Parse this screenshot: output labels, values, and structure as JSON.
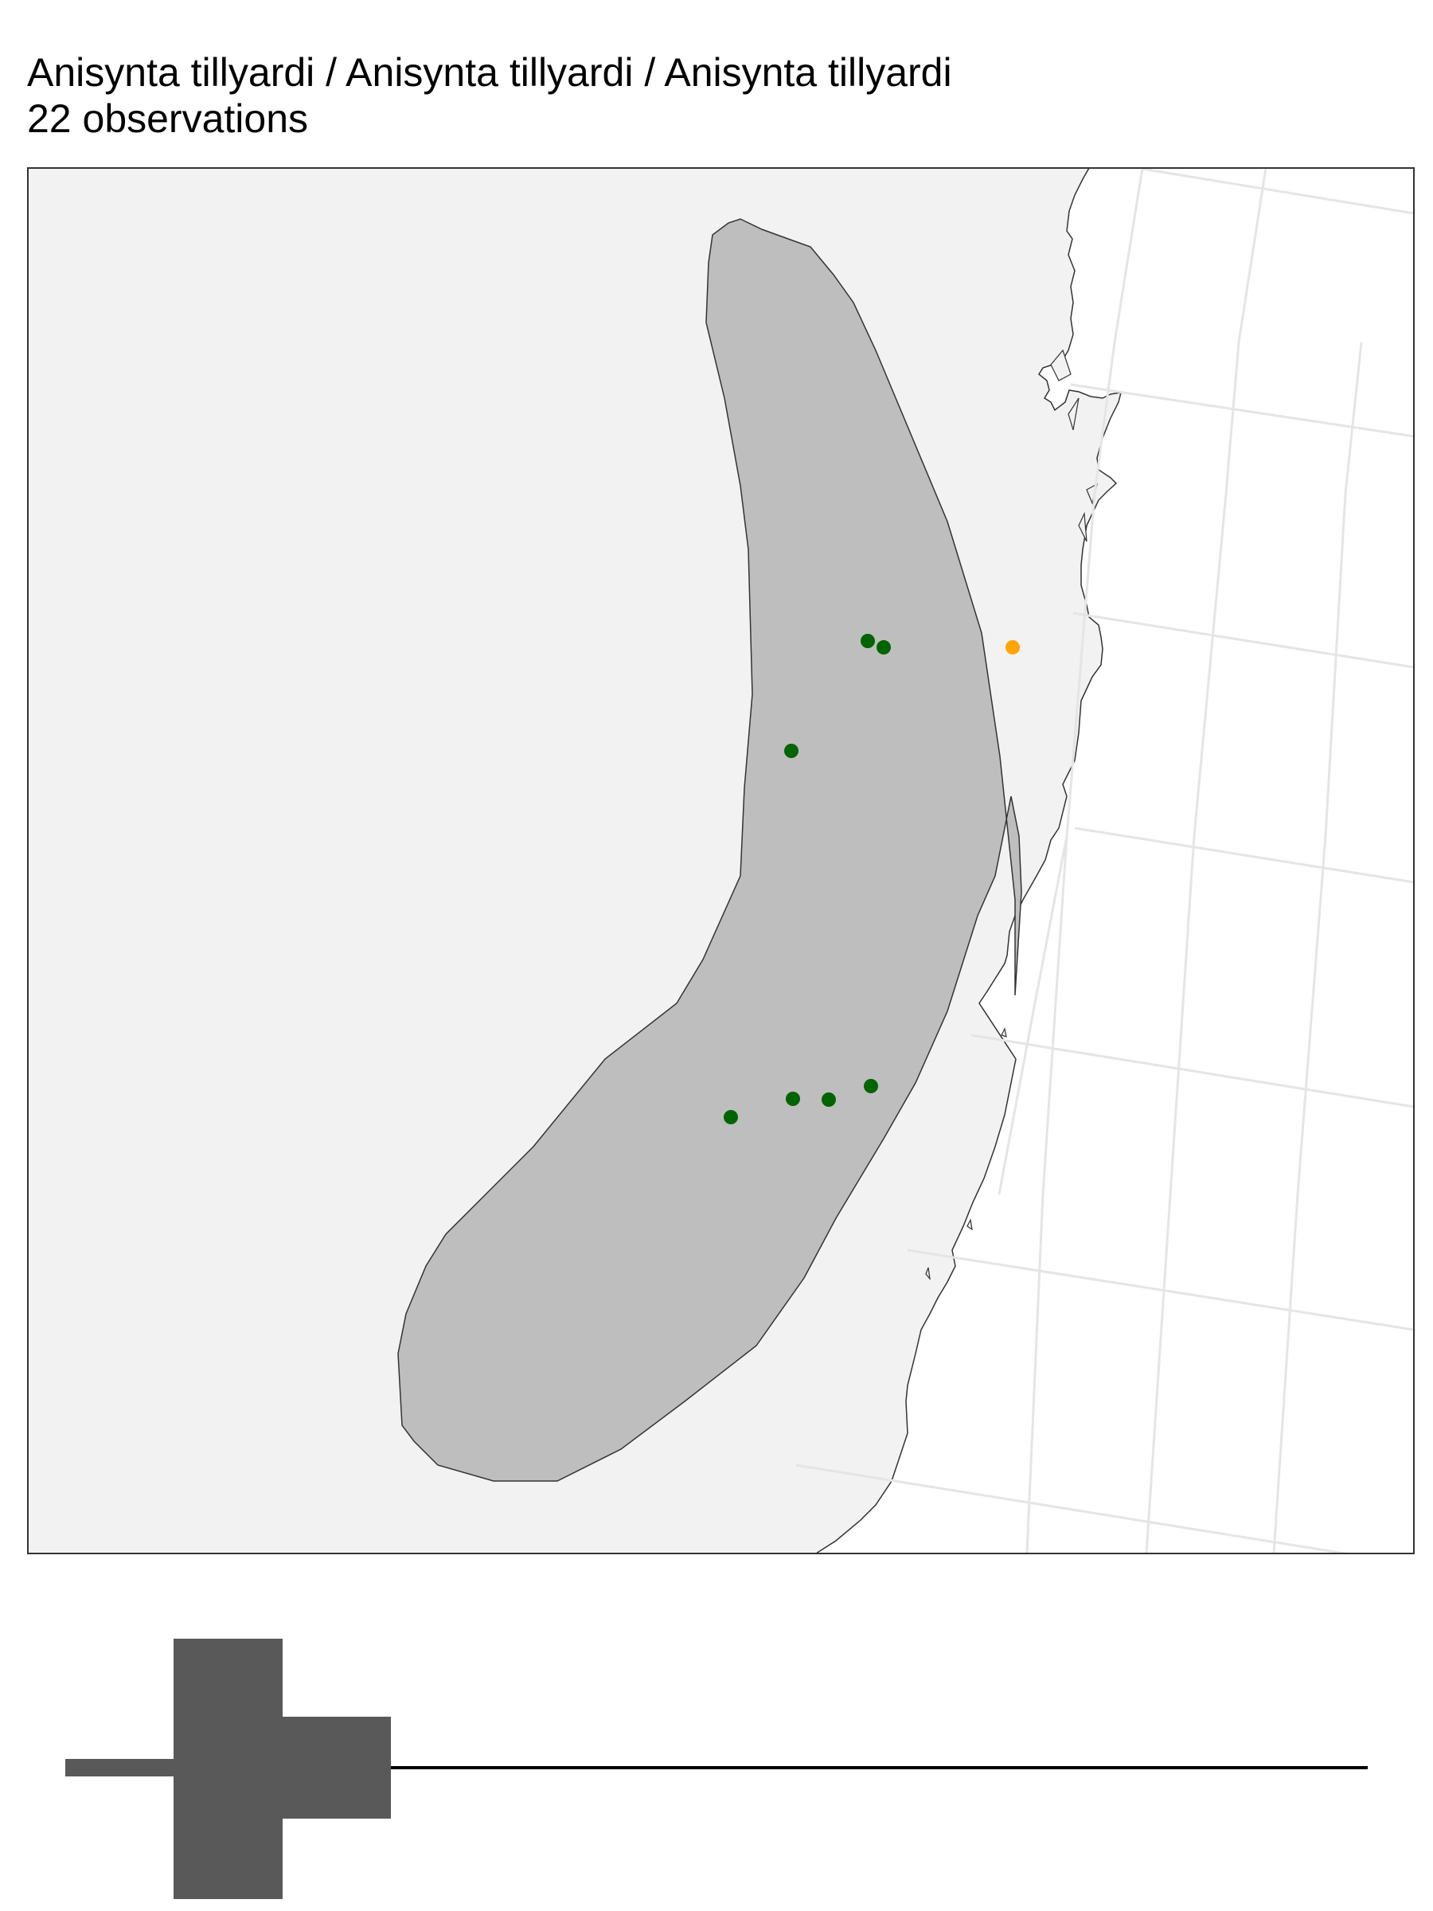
{
  "title": {
    "species": "Anisynta tillyardi / Anisynta tillyardi / Anisynta tillyardi",
    "observations": "22 observations"
  },
  "map": {
    "colors": {
      "land": "#f2f2f2",
      "ocean": "#ffffff",
      "range": "#bebebe",
      "outline": "#333333",
      "graticule": "#e5e5e5",
      "point_primary": "#006400",
      "point_secondary": "#ffa500"
    },
    "observations": [
      {
        "status": "primary"
      },
      {
        "status": "primary"
      },
      {
        "status": "primary"
      },
      {
        "status": "secondary"
      },
      {
        "status": "primary"
      },
      {
        "status": "primary"
      },
      {
        "status": "primary"
      },
      {
        "status": "primary"
      }
    ]
  },
  "timeline": {
    "color": "#595959"
  }
}
